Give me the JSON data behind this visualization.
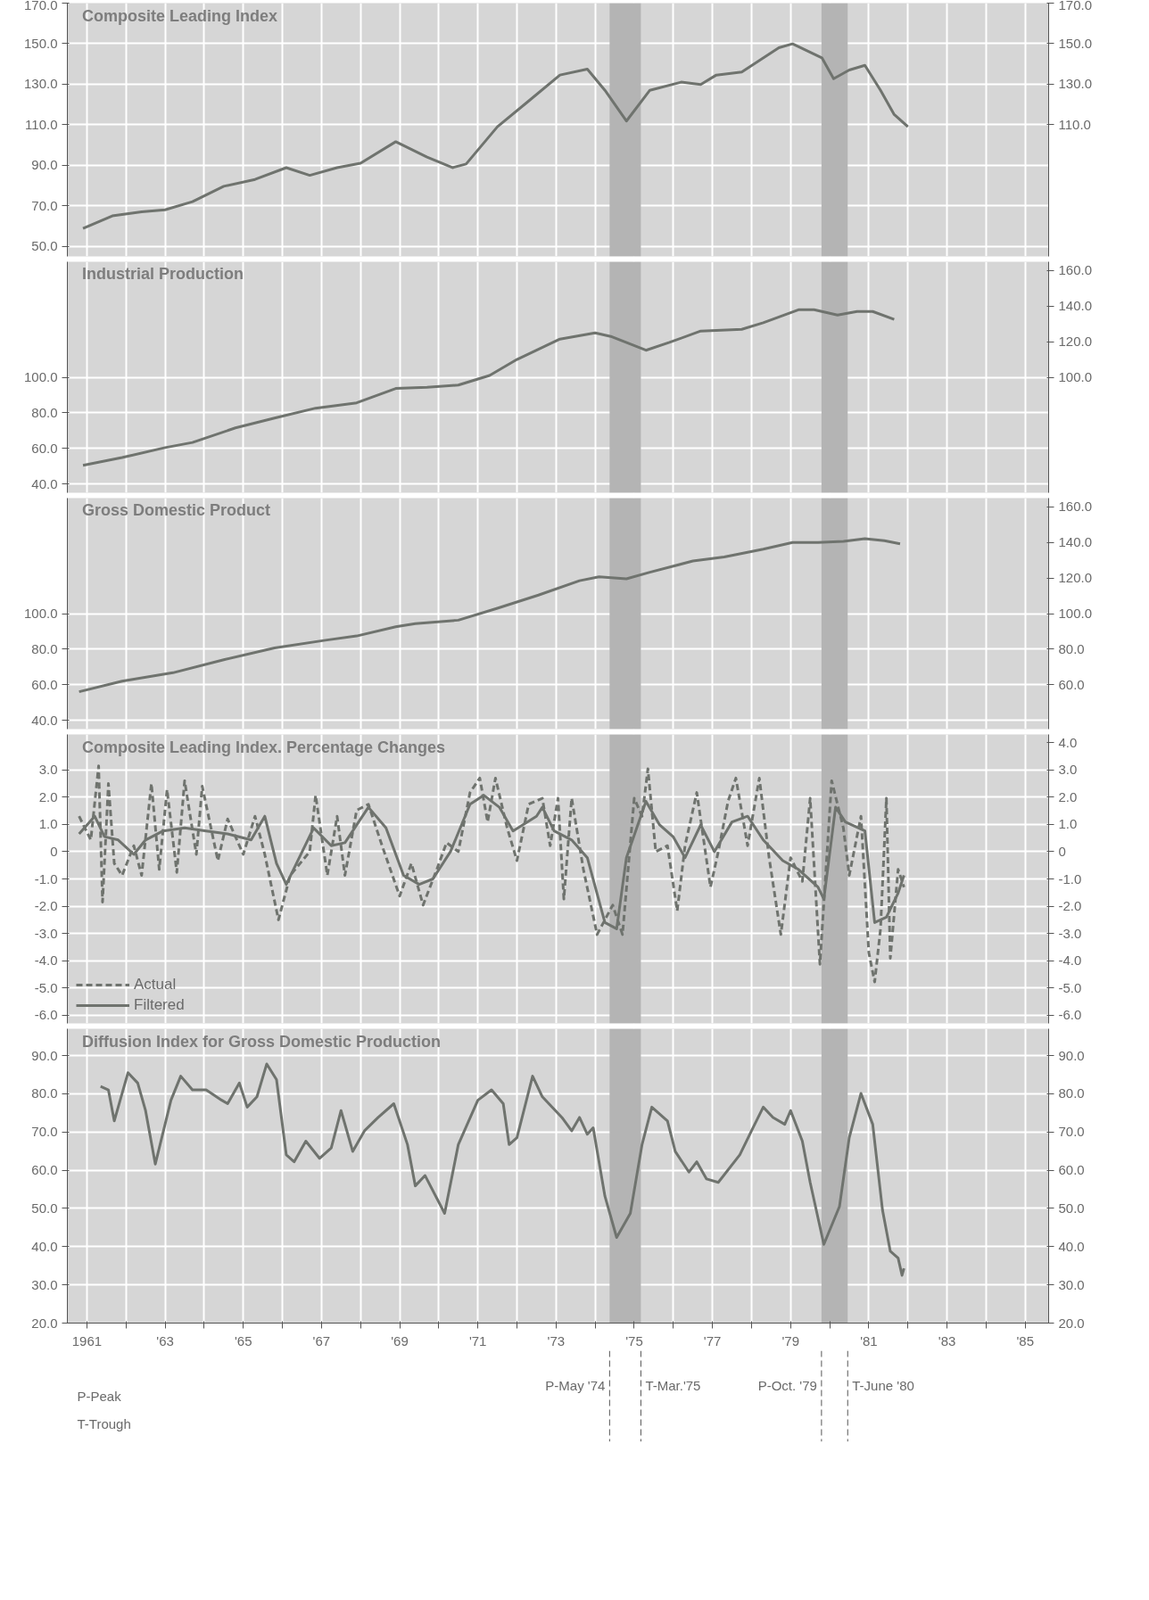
{
  "chart_data": [
    {
      "type": "line",
      "title": "Composite Leading Index",
      "xlim": [
        1960.5,
        1985.6
      ],
      "ylim": [
        45,
        170
      ],
      "y2lim": [
        45,
        170
      ],
      "grid": true,
      "tick_labels": "y",
      "xticks": [
        {
          "value": 1961,
          "label": null
        },
        {
          "value": 1962,
          "label": null
        },
        {
          "value": 1963,
          "label": null
        },
        {
          "value": 1964,
          "label": null
        },
        {
          "value": 1965,
          "label": null
        },
        {
          "value": 1966,
          "label": null
        },
        {
          "value": 1967,
          "label": null
        },
        {
          "value": 1968,
          "label": null
        },
        {
          "value": 1969,
          "label": null
        },
        {
          "value": 1970,
          "label": null
        },
        {
          "value": 1971,
          "label": null
        },
        {
          "value": 1972,
          "label": null
        },
        {
          "value": 1973,
          "label": null
        },
        {
          "value": 1974,
          "label": null
        },
        {
          "value": 1975,
          "label": null
        },
        {
          "value": 1976,
          "label": null
        },
        {
          "value": 1977,
          "label": null
        },
        {
          "value": 1978,
          "label": null
        },
        {
          "value": 1979,
          "label": null
        },
        {
          "value": 1980,
          "label": null
        },
        {
          "value": 1981,
          "label": null
        },
        {
          "value": 1982,
          "label": null
        },
        {
          "value": 1983,
          "label": null
        },
        {
          "value": 1984,
          "label": null
        },
        {
          "value": 1985,
          "label": null
        }
      ],
      "yticks": [
        {
          "value": 50,
          "label": "50.0"
        },
        {
          "value": 70,
          "label": "70.0"
        },
        {
          "value": 90,
          "label": "90.0"
        },
        {
          "value": 110,
          "label": "110.0"
        },
        {
          "value": 130,
          "label": "130.0"
        },
        {
          "value": 150,
          "label": "150.0"
        },
        {
          "value": 170,
          "label": "170.0"
        }
      ],
      "y2ticks": [
        {
          "value": 110,
          "label": "110.0"
        },
        {
          "value": 130,
          "label": "130.0"
        },
        {
          "value": 150,
          "label": "150.0"
        },
        {
          "value": 170,
          "label": "170.0"
        }
      ],
      "bands": [
        {
          "axis": "x",
          "from": 1974.37,
          "to": 1975.17,
          "color": "#b4b4b4"
        },
        {
          "axis": "x",
          "from": 1979.79,
          "to": 1980.46,
          "color": "#b4b4b4"
        }
      ],
      "series": [
        {
          "color": "#6f736e",
          "x": [
            1960.9,
            1961.65,
            1962.4,
            1963.0,
            1963.7,
            1964.5,
            1965.3,
            1966.1,
            1966.7,
            1967.4,
            1968.0,
            1968.9,
            1969.7,
            1970.35,
            1970.7,
            1971.5,
            1972.3,
            1973.1,
            1973.8,
            1974.25,
            1974.8,
            1975.4,
            1976.2,
            1976.7,
            1977.1,
            1977.75,
            1978.7,
            1979.05,
            1979.8,
            1980.1,
            1980.5,
            1980.9,
            1981.3,
            1981.65,
            1982.0
          ],
          "values": [
            58.8,
            65,
            67,
            68,
            72,
            79.6,
            83,
            88.8,
            85,
            88.8,
            91,
            101.6,
            94,
            88.8,
            90.6,
            109,
            121.7,
            134.5,
            137.4,
            127,
            111.8,
            127,
            131,
            129.8,
            134.5,
            136,
            148,
            149.9,
            143,
            132.7,
            137,
            139.3,
            127,
            115,
            109
          ]
        }
      ]
    },
    {
      "type": "line",
      "title": "Industrial Production",
      "xlim": [
        1960.5,
        1985.6
      ],
      "ylim": [
        35,
        165
      ],
      "y2lim": [
        35,
        165
      ],
      "grid": true,
      "tick_labels": "y",
      "xticks": [
        {
          "value": 1961,
          "label": null
        },
        {
          "value": 1962,
          "label": null
        },
        {
          "value": 1963,
          "label": null
        },
        {
          "value": 1964,
          "label": null
        },
        {
          "value": 1965,
          "label": null
        },
        {
          "value": 1966,
          "label": null
        },
        {
          "value": 1967,
          "label": null
        },
        {
          "value": 1968,
          "label": null
        },
        {
          "value": 1969,
          "label": null
        },
        {
          "value": 1970,
          "label": null
        },
        {
          "value": 1971,
          "label": null
        },
        {
          "value": 1972,
          "label": null
        },
        {
          "value": 1973,
          "label": null
        },
        {
          "value": 1974,
          "label": null
        },
        {
          "value": 1975,
          "label": null
        },
        {
          "value": 1976,
          "label": null
        },
        {
          "value": 1977,
          "label": null
        },
        {
          "value": 1978,
          "label": null
        },
        {
          "value": 1979,
          "label": null
        },
        {
          "value": 1980,
          "label": null
        },
        {
          "value": 1981,
          "label": null
        },
        {
          "value": 1982,
          "label": null
        },
        {
          "value": 1983,
          "label": null
        },
        {
          "value": 1984,
          "label": null
        },
        {
          "value": 1985,
          "label": null
        }
      ],
      "yticks": [
        {
          "value": 40,
          "label": "40.0"
        },
        {
          "value": 60,
          "label": "60.0"
        },
        {
          "value": 80,
          "label": "80.0"
        },
        {
          "value": 100,
          "label": "100.0"
        }
      ],
      "y2ticks": [
        {
          "value": 100,
          "label": "100.0"
        },
        {
          "value": 120,
          "label": "120.0"
        },
        {
          "value": 140,
          "label": "140.0"
        },
        {
          "value": 160,
          "label": "160.0"
        }
      ],
      "bands": [
        {
          "axis": "x",
          "from": 1974.37,
          "to": 1975.17,
          "color": "#b4b4b4"
        },
        {
          "axis": "x",
          "from": 1979.79,
          "to": 1980.46,
          "color": "#b4b4b4"
        }
      ],
      "series": [
        {
          "color": "#6f736e",
          "x": [
            1960.9,
            1961.9,
            1963.0,
            1963.7,
            1964.8,
            1965.8,
            1966.85,
            1967.9,
            1968.9,
            1969.7,
            1970.5,
            1971.3,
            1972.0,
            1973.1,
            1974.0,
            1974.4,
            1975.3,
            1975.9,
            1976.7,
            1977.75,
            1978.3,
            1979.2,
            1979.6,
            1980.2,
            1980.7,
            1981.1,
            1981.65
          ],
          "values": [
            50.4,
            54.8,
            60.4,
            63.3,
            71.5,
            77,
            82.6,
            85.6,
            93.7,
            94.4,
            95.6,
            101,
            110,
            121.5,
            125,
            123,
            115.2,
            119.6,
            126,
            127,
            130.7,
            138,
            138,
            135,
            137,
            137,
            132.6
          ]
        }
      ]
    },
    {
      "type": "line",
      "title": "Gross Domestic Product",
      "xlim": [
        1960.5,
        1985.6
      ],
      "ylim": [
        35,
        165
      ],
      "y2lim": [
        35,
        165
      ],
      "grid": true,
      "tick_labels": "y",
      "xticks": [
        {
          "value": 1961,
          "label": null
        },
        {
          "value": 1962,
          "label": null
        },
        {
          "value": 1963,
          "label": null
        },
        {
          "value": 1964,
          "label": null
        },
        {
          "value": 1965,
          "label": null
        },
        {
          "value": 1966,
          "label": null
        },
        {
          "value": 1967,
          "label": null
        },
        {
          "value": 1968,
          "label": null
        },
        {
          "value": 1969,
          "label": null
        },
        {
          "value": 1970,
          "label": null
        },
        {
          "value": 1971,
          "label": null
        },
        {
          "value": 1972,
          "label": null
        },
        {
          "value": 1973,
          "label": null
        },
        {
          "value": 1974,
          "label": null
        },
        {
          "value": 1975,
          "label": null
        },
        {
          "value": 1976,
          "label": null
        },
        {
          "value": 1977,
          "label": null
        },
        {
          "value": 1978,
          "label": null
        },
        {
          "value": 1979,
          "label": null
        },
        {
          "value": 1980,
          "label": null
        },
        {
          "value": 1981,
          "label": null
        },
        {
          "value": 1982,
          "label": null
        },
        {
          "value": 1983,
          "label": null
        },
        {
          "value": 1984,
          "label": null
        },
        {
          "value": 1985,
          "label": null
        }
      ],
      "yticks": [
        {
          "value": 40,
          "label": "40.0"
        },
        {
          "value": 60,
          "label": "60.0"
        },
        {
          "value": 80,
          "label": "80.0"
        },
        {
          "value": 100,
          "label": "100.0"
        }
      ],
      "y2ticks": [
        {
          "value": 60,
          "label": "60.0"
        },
        {
          "value": 80,
          "label": "80.0"
        },
        {
          "value": 100,
          "label": "100.0"
        },
        {
          "value": 120,
          "label": "120.0"
        },
        {
          "value": 140,
          "label": "140.0"
        },
        {
          "value": 160,
          "label": "160.0"
        }
      ],
      "bands": [
        {
          "axis": "x",
          "from": 1974.37,
          "to": 1975.17,
          "color": "#b4b4b4"
        },
        {
          "axis": "x",
          "from": 1979.79,
          "to": 1980.46,
          "color": "#b4b4b4"
        }
      ],
      "series": [
        {
          "color": "#6f736e",
          "x": [
            1960.8,
            1961.9,
            1963.2,
            1964.5,
            1965.8,
            1967.1,
            1967.9,
            1968.9,
            1969.4,
            1970.5,
            1971.5,
            1972.55,
            1973.6,
            1974.1,
            1974.8,
            1975.4,
            1976.5,
            1977.3,
            1978.3,
            1979.05,
            1979.7,
            1980.35,
            1980.9,
            1981.4,
            1981.8
          ],
          "values": [
            56,
            62,
            66.7,
            74,
            80.7,
            85,
            87.4,
            92.6,
            94.4,
            96.3,
            103,
            110.4,
            118.5,
            120.7,
            119.6,
            123.3,
            129.6,
            131.9,
            136.3,
            140,
            140,
            140.7,
            142.2,
            141,
            139.3
          ]
        }
      ]
    },
    {
      "type": "line",
      "title": "Composite Leading Index. Percentage Changes",
      "xlim": [
        1960.5,
        1985.6
      ],
      "ylim": [
        -6.3,
        4.3
      ],
      "y2lim": [
        -6.3,
        4.3
      ],
      "grid": true,
      "tick_labels": "y",
      "legend": "bottom left",
      "xticks": [
        {
          "value": 1961,
          "label": null
        },
        {
          "value": 1962,
          "label": null
        },
        {
          "value": 1963,
          "label": null
        },
        {
          "value": 1964,
          "label": null
        },
        {
          "value": 1965,
          "label": null
        },
        {
          "value": 1966,
          "label": null
        },
        {
          "value": 1967,
          "label": null
        },
        {
          "value": 1968,
          "label": null
        },
        {
          "value": 1969,
          "label": null
        },
        {
          "value": 1970,
          "label": null
        },
        {
          "value": 1971,
          "label": null
        },
        {
          "value": 1972,
          "label": null
        },
        {
          "value": 1973,
          "label": null
        },
        {
          "value": 1974,
          "label": null
        },
        {
          "value": 1975,
          "label": null
        },
        {
          "value": 1976,
          "label": null
        },
        {
          "value": 1977,
          "label": null
        },
        {
          "value": 1978,
          "label": null
        },
        {
          "value": 1979,
          "label": null
        },
        {
          "value": 1980,
          "label": null
        },
        {
          "value": 1981,
          "label": null
        },
        {
          "value": 1982,
          "label": null
        },
        {
          "value": 1983,
          "label": null
        },
        {
          "value": 1984,
          "label": null
        },
        {
          "value": 1985,
          "label": null
        }
      ],
      "yticks": [
        {
          "value": -6,
          "label": "-6.0"
        },
        {
          "value": -5,
          "label": "-5.0"
        },
        {
          "value": -4,
          "label": "-4.0"
        },
        {
          "value": -3,
          "label": "-3.0"
        },
        {
          "value": -2,
          "label": "-2.0"
        },
        {
          "value": -1,
          "label": "-1.0"
        },
        {
          "value": 0,
          "label": "0"
        },
        {
          "value": 1,
          "label": "1.0"
        },
        {
          "value": 2,
          "label": "2.0"
        },
        {
          "value": 3,
          "label": "3.0"
        }
      ],
      "y2ticks": [
        {
          "value": -6,
          "label": "-6.0"
        },
        {
          "value": -5,
          "label": "-5.0"
        },
        {
          "value": -4,
          "label": "-4.0"
        },
        {
          "value": -3,
          "label": "-3.0"
        },
        {
          "value": -2,
          "label": "-2.0"
        },
        {
          "value": -1,
          "label": "-1.0"
        },
        {
          "value": 0,
          "label": "0"
        },
        {
          "value": 1,
          "label": "1.0"
        },
        {
          "value": 2,
          "label": "2.0"
        },
        {
          "value": 3,
          "label": "3.0"
        },
        {
          "value": 4,
          "label": "4.0"
        }
      ],
      "bands": [
        {
          "axis": "x",
          "from": 1974.37,
          "to": 1975.17,
          "color": "#b4b4b4"
        },
        {
          "axis": "x",
          "from": 1979.79,
          "to": 1980.46,
          "color": "#b4b4b4"
        }
      ],
      "series": [
        {
          "name": "Actual",
          "color": "#6f736e",
          "line_style": "dashed",
          "x": [
            1960.8,
            1961.1,
            1961.3,
            1961.4,
            1961.55,
            1961.7,
            1961.9,
            1962.2,
            1962.4,
            1962.65,
            1962.85,
            1963.05,
            1963.3,
            1963.5,
            1963.8,
            1963.95,
            1964.35,
            1964.6,
            1965.0,
            1965.3,
            1965.55,
            1965.9,
            1966.2,
            1966.7,
            1966.85,
            1967.15,
            1967.4,
            1967.6,
            1967.9,
            1968.2,
            1968.55,
            1969.0,
            1969.3,
            1969.6,
            1969.95,
            1970.2,
            1970.5,
            1970.8,
            1971.05,
            1971.25,
            1971.45,
            1971.75,
            1972.0,
            1972.3,
            1972.65,
            1972.85,
            1973.05,
            1973.2,
            1973.4,
            1973.7,
            1974.05,
            1974.45,
            1974.7,
            1975.0,
            1975.2,
            1975.35,
            1975.55,
            1975.85,
            1976.1,
            1976.3,
            1976.6,
            1976.95,
            1977.15,
            1977.4,
            1977.6,
            1977.9,
            1978.2,
            1978.45,
            1978.75,
            1979.0,
            1979.3,
            1979.5,
            1979.75,
            1980.05,
            1980.35,
            1980.5,
            1980.8,
            1981.0,
            1981.15,
            1981.3,
            1981.45,
            1981.55,
            1981.75,
            1981.9
          ],
          "values": [
            1.3,
            0.43,
            3.15,
            -1.85,
            2.5,
            -0.43,
            -0.87,
            0.22,
            -0.87,
            2.5,
            -0.65,
            2.28,
            -0.76,
            2.6,
            -0.1,
            2.4,
            -0.33,
            1.2,
            -0.1,
            1.3,
            -0.1,
            -2.5,
            -0.87,
            0,
            2.07,
            -0.87,
            1.3,
            -0.87,
            1.52,
            1.74,
            0.22,
            -1.63,
            -0.43,
            -1.96,
            -0.65,
            0.33,
            0,
            2.17,
            2.7,
            1.09,
            2.7,
            0.87,
            -0.33,
            1.74,
            1.96,
            0.22,
            1.96,
            -1.74,
            1.96,
            -0.65,
            -3.04,
            -1.96,
            -3.04,
            1.96,
            1.3,
            3.04,
            0,
            0.22,
            -2.17,
            0.22,
            2.17,
            -1.3,
            0,
            1.85,
            2.7,
            0.22,
            2.7,
            -0.22,
            -3.04,
            -0.22,
            -1.09,
            1.96,
            -4.13,
            2.6,
            0.87,
            -0.87,
            1.3,
            -3.7,
            -4.78,
            -2.83,
            1.96,
            -3.91,
            -0.65,
            -1.3
          ]
        },
        {
          "name": "Filtered",
          "color": "#6f736e",
          "line_style": "solid",
          "x": [
            1960.8,
            1961.2,
            1961.45,
            1961.8,
            1962.2,
            1962.5,
            1962.95,
            1963.5,
            1964.05,
            1964.6,
            1965.2,
            1965.55,
            1965.85,
            1966.1,
            1966.8,
            1967.25,
            1967.6,
            1968.2,
            1968.65,
            1969.1,
            1969.5,
            1969.85,
            1970.3,
            1970.8,
            1971.15,
            1971.55,
            1971.9,
            1972.5,
            1972.65,
            1972.95,
            1973.4,
            1973.8,
            1974.25,
            1974.55,
            1974.8,
            1975.3,
            1975.65,
            1976.0,
            1976.3,
            1976.7,
            1977.05,
            1977.5,
            1977.9,
            1978.3,
            1978.8,
            1979.2,
            1979.7,
            1979.85,
            1980.15,
            1980.4,
            1980.9,
            1981.15,
            1981.45,
            1981.75,
            1981.9
          ],
          "values": [
            0.65,
            1.3,
            0.55,
            0.43,
            -0.1,
            0.43,
            0.76,
            0.87,
            0.76,
            0.65,
            0.43,
            1.3,
            -0.43,
            -1.2,
            0.87,
            0.22,
            0.33,
            1.63,
            0.87,
            -0.87,
            -1.2,
            -1.0,
            0,
            1.74,
            2.07,
            1.63,
            0.76,
            1.3,
            1.63,
            0.76,
            0.43,
            -0.22,
            -2.6,
            -2.83,
            -0.22,
            1.85,
            0.98,
            0.54,
            -0.22,
            0.98,
            0,
            1.09,
            1.3,
            0.43,
            -0.33,
            -0.65,
            -1.3,
            -1.74,
            1.63,
            1.09,
            0.76,
            -2.6,
            -2.4,
            -1.52,
            -0.87
          ]
        }
      ]
    },
    {
      "type": "line",
      "title": "Diffusion Index for Gross Domestic Production",
      "xlim": [
        1960.5,
        1985.6
      ],
      "ylim": [
        20,
        97
      ],
      "y2lim": [
        20,
        97
      ],
      "grid": true,
      "xticks": [
        {
          "value": 1961,
          "label": "1961"
        },
        {
          "value": 1962,
          "label": null
        },
        {
          "value": 1963,
          "label": "'63"
        },
        {
          "value": 1964,
          "label": null
        },
        {
          "value": 1965,
          "label": "'65"
        },
        {
          "value": 1966,
          "label": null
        },
        {
          "value": 1967,
          "label": "'67"
        },
        {
          "value": 1968,
          "label": null
        },
        {
          "value": 1969,
          "label": "'69"
        },
        {
          "value": 1970,
          "label": null
        },
        {
          "value": 1971,
          "label": "'71"
        },
        {
          "value": 1972,
          "label": null
        },
        {
          "value": 1973,
          "label": "'73"
        },
        {
          "value": 1974,
          "label": null
        },
        {
          "value": 1975,
          "label": "'75"
        },
        {
          "value": 1976,
          "label": null
        },
        {
          "value": 1977,
          "label": "'77"
        },
        {
          "value": 1978,
          "label": null
        },
        {
          "value": 1979,
          "label": "'79"
        },
        {
          "value": 1980,
          "label": null
        },
        {
          "value": 1981,
          "label": "'81"
        },
        {
          "value": 1982,
          "label": null
        },
        {
          "value": 1983,
          "label": "'83"
        },
        {
          "value": 1984,
          "label": null
        },
        {
          "value": 1985,
          "label": "'85"
        }
      ],
      "yticks": [
        {
          "value": 20,
          "label": "20.0"
        },
        {
          "value": 30,
          "label": "30.0"
        },
        {
          "value": 40,
          "label": "40.0"
        },
        {
          "value": 50,
          "label": "50.0"
        },
        {
          "value": 60,
          "label": "60.0"
        },
        {
          "value": 70,
          "label": "70.0"
        },
        {
          "value": 80,
          "label": "80.0"
        },
        {
          "value": 90,
          "label": "90.0"
        }
      ],
      "y2ticks": [
        {
          "value": 20,
          "label": "20.0"
        },
        {
          "value": 30,
          "label": "30.0"
        },
        {
          "value": 40,
          "label": "40.0"
        },
        {
          "value": 50,
          "label": "50.0"
        },
        {
          "value": 60,
          "label": "60.0"
        },
        {
          "value": 70,
          "label": "70.0"
        },
        {
          "value": 80,
          "label": "80.0"
        },
        {
          "value": 90,
          "label": "90.0"
        }
      ],
      "bands": [
        {
          "axis": "x",
          "from": 1974.37,
          "to": 1975.17,
          "color": "#b4b4b4"
        },
        {
          "axis": "x",
          "from": 1979.79,
          "to": 1980.46,
          "color": "#b4b4b4"
        }
      ],
      "ref_lines": [
        {
          "axis": "x",
          "value": 1974.37,
          "label": "P-May '74",
          "line_style": "dashed"
        },
        {
          "axis": "x",
          "value": 1975.17,
          "label": "T-Mar.'75",
          "line_style": "dashed"
        },
        {
          "axis": "x",
          "value": 1979.79,
          "label": "P-Oct. '79",
          "line_style": "dashed"
        },
        {
          "axis": "x",
          "value": 1980.46,
          "label": "T-June '80",
          "line_style": "dashed"
        }
      ],
      "annotations": [
        "P-Peak",
        "T-Trough"
      ],
      "series": [
        {
          "color": "#6f736e",
          "x": [
            1961.35,
            1961.55,
            1961.7,
            1962.05,
            1962.3,
            1962.5,
            1962.75,
            1963.15,
            1963.4,
            1963.7,
            1964.05,
            1964.45,
            1964.6,
            1964.9,
            1965.1,
            1965.35,
            1965.6,
            1965.85,
            1966.1,
            1966.3,
            1966.6,
            1966.95,
            1967.25,
            1967.5,
            1967.8,
            1968.1,
            1968.45,
            1968.85,
            1969.2,
            1969.4,
            1969.65,
            1970.15,
            1970.5,
            1971.0,
            1971.35,
            1971.65,
            1971.8,
            1972.0,
            1972.4,
            1972.65,
            1973.15,
            1973.4,
            1973.6,
            1973.8,
            1973.95,
            1974.25,
            1974.55,
            1974.9,
            1975.2,
            1975.45,
            1975.85,
            1976.05,
            1976.4,
            1976.6,
            1976.85,
            1977.15,
            1977.7,
            1978.0,
            1978.3,
            1978.55,
            1978.85,
            1979.0,
            1979.3,
            1979.5,
            1979.85,
            1980.25,
            1980.5,
            1980.8,
            1981.1,
            1981.35,
            1981.55,
            1981.75,
            1981.85,
            1981.9
          ],
          "values": [
            81.9,
            81,
            72.9,
            85.5,
            82.8,
            75.6,
            61.6,
            78.3,
            84.6,
            81,
            81,
            78.3,
            77.4,
            82.8,
            76.5,
            79.2,
            87.8,
            83.7,
            64,
            62.2,
            67.6,
            63.1,
            65.8,
            75.6,
            64.9,
            70.3,
            73.8,
            77.4,
            66.7,
            55.9,
            58.6,
            48.7,
            66.7,
            78.3,
            81,
            77.4,
            66.7,
            68.5,
            84.6,
            79.2,
            73.8,
            70.3,
            73.8,
            69.4,
            71.1,
            53.2,
            42.4,
            48.7,
            66.7,
            76.5,
            72.9,
            64.9,
            59.5,
            62.2,
            57.7,
            56.8,
            64,
            70.3,
            76.5,
            73.8,
            72,
            75.6,
            67.6,
            56.8,
            40.6,
            50.5,
            68.5,
            80.1,
            72,
            49.6,
            38.8,
            37,
            32.5,
            34.3
          ]
        }
      ]
    }
  ]
}
